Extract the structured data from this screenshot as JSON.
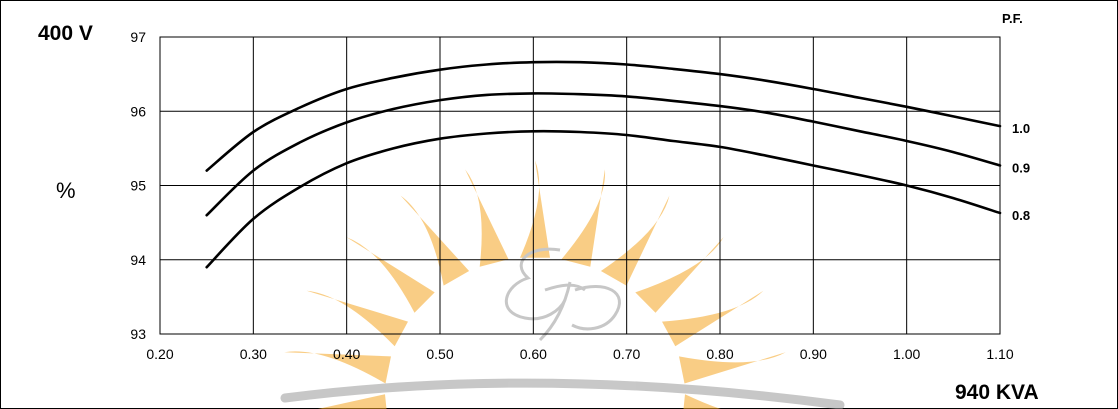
{
  "chart_data": {
    "type": "line",
    "voltage_label": "400 V",
    "rating_label": "940 KVA",
    "ylabel": "%",
    "legend_title": "P.F.",
    "xlim": [
      0.2,
      1.1
    ],
    "ylim": [
      93,
      97
    ],
    "x_ticks": [
      "0.20",
      "0.30",
      "0.40",
      "0.50",
      "0.60",
      "0.70",
      "0.80",
      "0.90",
      "1.00",
      "1.10"
    ],
    "y_ticks": [
      "93",
      "94",
      "95",
      "96",
      "97"
    ],
    "grid": true,
    "x": [
      0.25,
      0.3,
      0.35,
      0.4,
      0.45,
      0.5,
      0.55,
      0.6,
      0.65,
      0.7,
      0.75,
      0.8,
      0.85,
      0.9,
      0.95,
      1.0,
      1.05,
      1.1
    ],
    "series": [
      {
        "name": "1.0",
        "values": [
          95.2,
          95.72,
          96.05,
          96.3,
          96.45,
          96.56,
          96.63,
          96.66,
          96.66,
          96.63,
          96.57,
          96.5,
          96.41,
          96.3,
          96.18,
          96.06,
          95.93,
          95.8
        ]
      },
      {
        "name": "0.9",
        "values": [
          94.6,
          95.2,
          95.58,
          95.85,
          96.03,
          96.15,
          96.22,
          96.24,
          96.23,
          96.2,
          96.14,
          96.07,
          95.98,
          95.86,
          95.73,
          95.6,
          95.45,
          95.27
        ]
      },
      {
        "name": "0.8",
        "values": [
          93.9,
          94.55,
          94.98,
          95.3,
          95.5,
          95.63,
          95.7,
          95.73,
          95.72,
          95.68,
          95.6,
          95.52,
          95.4,
          95.27,
          95.14,
          95.0,
          94.83,
          94.63
        ]
      }
    ]
  },
  "watermark": {
    "monogram": "EP",
    "sun_color": "#f5a623",
    "ring_color": "#9a9a9a"
  }
}
